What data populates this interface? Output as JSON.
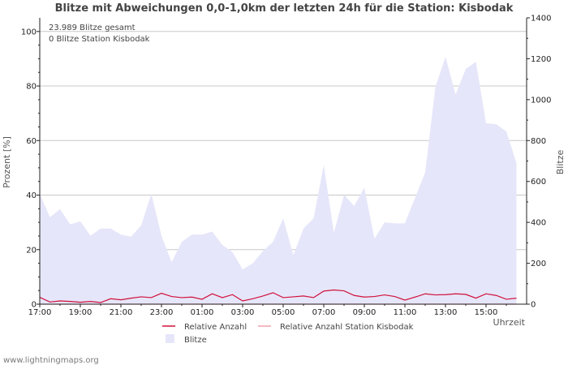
{
  "chart_data": {
    "type": "area",
    "title": "Blitze mit Abweichungen 0,0-1,0km der letzten 24h für die Station: Kisbodak",
    "ylabel": "Prozent   [%]",
    "y2label": "Blitze",
    "xlabel": "Uhrzeit",
    "ylim": [
      0,
      105
    ],
    "y2lim": [
      0,
      1400
    ],
    "yticks": [
      0,
      20,
      40,
      60,
      80,
      100
    ],
    "y2ticks": [
      0,
      200,
      400,
      600,
      800,
      1000,
      1200,
      1400
    ],
    "xlim": [
      17.0,
      41.0
    ],
    "xticks": [
      {
        "x": 17,
        "label": "17:00"
      },
      {
        "x": 19,
        "label": "19:00"
      },
      {
        "x": 21,
        "label": "21:00"
      },
      {
        "x": 23,
        "label": "23:00"
      },
      {
        "x": 25,
        "label": "01:00"
      },
      {
        "x": 27,
        "label": "03:00"
      },
      {
        "x": 29,
        "label": "05:00"
      },
      {
        "x": 31,
        "label": "07:00"
      },
      {
        "x": 33,
        "label": "09:00"
      },
      {
        "x": 35,
        "label": "11:00"
      },
      {
        "x": 37,
        "label": "13:00"
      },
      {
        "x": 39,
        "label": "15:00"
      }
    ],
    "annotations": [
      "23.989 Blitze gesamt",
      "0 Blitze Station Kisbodak"
    ],
    "series": [
      {
        "name": "Blitze",
        "axis": "right",
        "color": "#e6e6fa",
        "x": [
          17.0,
          17.5,
          18.0,
          18.5,
          19.0,
          19.5,
          20.0,
          20.5,
          21.0,
          21.5,
          22.0,
          22.5,
          23.0,
          23.5,
          24.0,
          24.5,
          25.0,
          25.5,
          26.0,
          26.5,
          27.0,
          27.5,
          28.0,
          28.5,
          29.0,
          29.5,
          30.0,
          30.5,
          31.0,
          31.5,
          32.0,
          32.5,
          33.0,
          33.5,
          34.0,
          34.5,
          35.0,
          35.5,
          36.0,
          36.5,
          37.0,
          37.5,
          38.0,
          38.5,
          39.0,
          39.5,
          40.0,
          40.5
        ],
        "values": [
          540,
          425,
          465,
          390,
          405,
          335,
          370,
          370,
          340,
          330,
          385,
          540,
          335,
          205,
          305,
          340,
          340,
          355,
          290,
          255,
          170,
          200,
          260,
          305,
          420,
          240,
          370,
          420,
          680,
          350,
          535,
          480,
          570,
          320,
          400,
          395,
          395,
          520,
          645,
          1060,
          1210,
          1025,
          1150,
          1185,
          885,
          880,
          845,
          690
        ]
      },
      {
        "name": "Relative Anzahl",
        "axis": "left",
        "color": "#d0103a",
        "x": [
          17.0,
          17.5,
          18.0,
          18.5,
          19.0,
          19.5,
          20.0,
          20.5,
          21.0,
          21.5,
          22.0,
          22.5,
          23.0,
          23.5,
          24.0,
          24.5,
          25.0,
          25.5,
          26.0,
          26.5,
          27.0,
          27.5,
          28.0,
          28.5,
          29.0,
          29.5,
          30.0,
          30.5,
          31.0,
          31.5,
          32.0,
          32.5,
          33.0,
          33.5,
          34.0,
          34.5,
          35.0,
          35.5,
          36.0,
          36.5,
          37.0,
          37.5,
          38.0,
          38.5,
          39.0,
          39.5,
          40.0,
          40.5
        ],
        "values": [
          2.5,
          0.8,
          1.2,
          1.0,
          0.7,
          1.0,
          0.6,
          2.0,
          1.6,
          2.2,
          2.7,
          2.4,
          4.0,
          2.8,
          2.4,
          2.6,
          1.8,
          3.8,
          2.4,
          3.5,
          1.2,
          2.0,
          3.0,
          4.2,
          2.4,
          2.7,
          3.0,
          2.4,
          4.8,
          5.2,
          4.9,
          3.2,
          2.6,
          2.8,
          3.4,
          2.8,
          1.5,
          2.6,
          3.8,
          3.4,
          3.5,
          3.8,
          3.6,
          2.2,
          3.8,
          3.2,
          1.8,
          2.2
        ]
      },
      {
        "name": "Relative Anzahl Station Kisbodak",
        "axis": "left",
        "color": "#f2a0ad",
        "x": [
          17.0,
          40.5
        ],
        "values": [
          0,
          0
        ]
      }
    ],
    "legend": [
      {
        "label": "Relative Anzahl",
        "kind": "line",
        "color": "#d0103a"
      },
      {
        "label": "Relative Anzahl Station Kisbodak",
        "kind": "line",
        "color": "#f2a0ad"
      },
      {
        "label": "Blitze",
        "kind": "box",
        "color": "#e6e6fa"
      }
    ]
  },
  "footer": "www.lightningmaps.org"
}
